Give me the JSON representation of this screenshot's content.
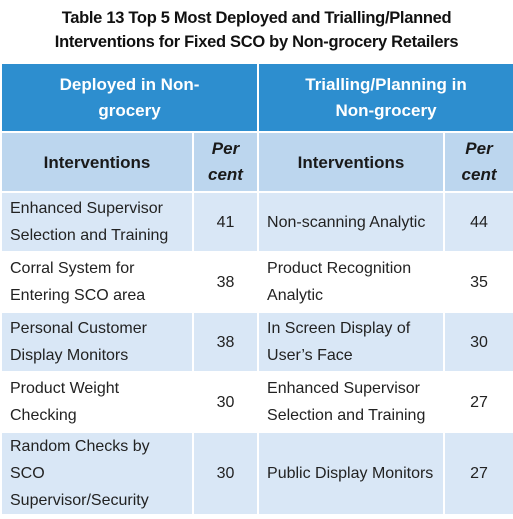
{
  "title": "Table 13 Top 5 Most Deployed and Trialling/Planned Interventions for Fixed SCO by Non-grocery Retailers",
  "table": {
    "group_headers": [
      "Deployed in Non-grocery",
      "Trialling/Planning in Non-grocery"
    ],
    "column_headers": [
      "Interventions",
      "Per cent",
      "Interventions",
      "Per cent"
    ],
    "rows": [
      [
        "Enhanced Supervisor Selection and Training",
        41,
        "Non-scanning Analytic",
        44
      ],
      [
        "Corral System for Entering SCO area",
        38,
        "Product Recognition Analytic",
        35
      ],
      [
        "Personal Customer Display Monitors",
        38,
        "In Screen Display of User’s Face",
        30
      ],
      [
        "Product Weight Checking",
        30,
        "Enhanced Supervisor Selection and Training",
        27
      ],
      [
        "Random Checks by SCO Supervisor/Security",
        30,
        "Public Display Monitors",
        27
      ]
    ]
  }
}
